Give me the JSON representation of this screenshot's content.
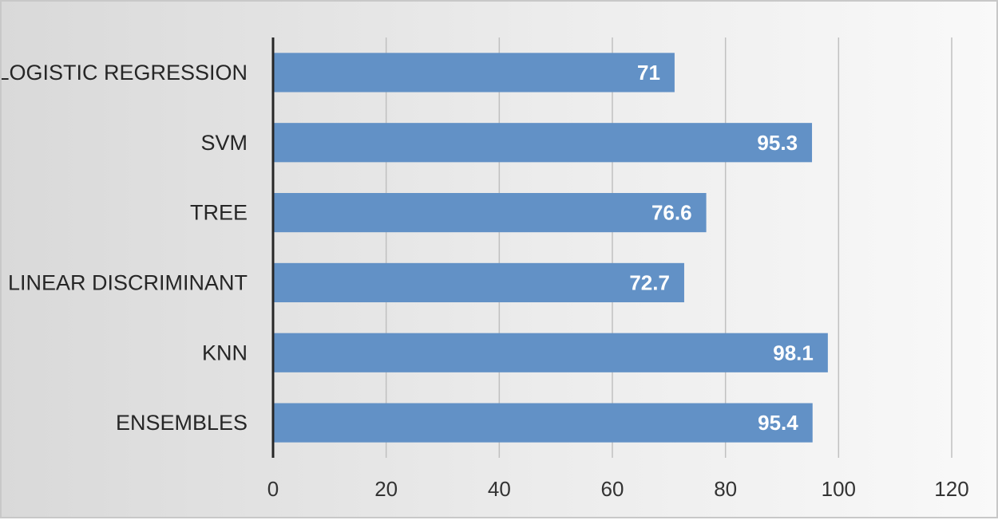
{
  "chart_data": {
    "type": "bar",
    "orientation": "horizontal",
    "categories": [
      "LOGISTIC REGRESSION",
      "SVM",
      "TREE",
      "LINEAR DISCRIMINANT",
      "KNN",
      "ENSEMBLES"
    ],
    "values": [
      71,
      95.3,
      76.6,
      72.7,
      98.1,
      95.4
    ],
    "data_labels": [
      "71",
      "95.3",
      "76.6",
      "72.7",
      "98.1",
      "95.4"
    ],
    "xlim": [
      0,
      120
    ],
    "x_ticks": [
      0,
      20,
      40,
      60,
      80,
      100,
      120
    ],
    "grid": true,
    "legend": "none",
    "bar_color": "#6291c6",
    "title": "",
    "xlabel": "",
    "ylabel": ""
  }
}
